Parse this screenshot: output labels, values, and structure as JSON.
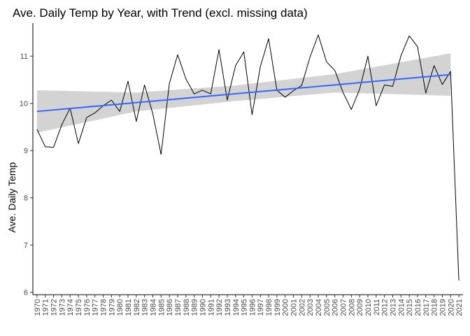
{
  "chart_data": {
    "type": "line",
    "title": "Ave. Daily Temp by Year, with Trend (excl. missing data)",
    "xlabel": "",
    "ylabel": "Ave. Daily Temp",
    "x": [
      1970,
      1971,
      1972,
      1973,
      1974,
      1975,
      1976,
      1977,
      1978,
      1979,
      1980,
      1981,
      1982,
      1983,
      1984,
      1985,
      1986,
      1987,
      1988,
      1989,
      1990,
      1991,
      1992,
      1993,
      1994,
      1995,
      1996,
      1997,
      1998,
      1999,
      2000,
      2001,
      2002,
      2003,
      2004,
      2005,
      2006,
      2007,
      2008,
      2009,
      2010,
      2011,
      2012,
      2013,
      2014,
      2015,
      2016,
      2017,
      2018,
      2019,
      2020,
      2021
    ],
    "x_tick_labels": [
      "1970",
      "1971",
      "1972",
      "1973",
      "1974",
      "1975",
      "1976",
      "1977",
      "1978",
      "1979",
      "1980",
      "1981",
      "1982",
      "1983",
      "1984",
      "1985",
      "1986",
      "1987",
      "1988",
      "1989",
      "1990",
      "1991",
      "1992",
      "1993",
      "1994",
      "1995",
      "1996",
      "1997",
      "1998",
      "1999",
      "2000",
      "2001",
      "2002",
      "2003",
      "2004",
      "2005",
      "2006",
      "2007",
      "2008",
      "2009",
      "2010",
      "2011",
      "2012",
      "2013",
      "2014",
      "2015",
      "2016",
      "2017",
      "2018",
      "2019",
      "2020",
      "2021"
    ],
    "y_ticks": [
      "6",
      "7",
      "8",
      "9",
      "10",
      "11"
    ],
    "ylim": [
      5.95,
      11.7
    ],
    "xlim": [
      1969.5,
      2021.5
    ],
    "grid": false,
    "series": [
      {
        "role": "observed",
        "color": "#000000",
        "values": [
          9.45,
          9.08,
          9.07,
          9.55,
          9.9,
          9.15,
          9.7,
          9.8,
          9.95,
          10.07,
          9.83,
          10.47,
          9.62,
          10.39,
          9.78,
          8.92,
          10.42,
          11.03,
          10.52,
          10.2,
          10.28,
          10.2,
          11.14,
          10.07,
          10.8,
          11.09,
          9.76,
          10.78,
          11.37,
          10.28,
          10.13,
          10.27,
          10.38,
          10.98,
          11.45,
          10.88,
          10.7,
          10.23,
          9.87,
          10.3,
          11.0,
          9.95,
          10.39,
          10.36,
          11.01,
          11.43,
          11.2,
          10.22,
          10.8,
          10.4,
          10.68,
          6.25
        ]
      },
      {
        "role": "trend",
        "color": "#3366ff",
        "start": [
          1970,
          9.83
        ],
        "end": [
          2020,
          10.61
        ]
      }
    ],
    "confidence_band": {
      "color": "#d3d3d3",
      "x": [
        1970,
        1982,
        1994,
        2006,
        2020
      ],
      "lower": [
        9.38,
        9.83,
        10.05,
        10.23,
        10.16
      ],
      "upper": [
        10.28,
        10.23,
        10.38,
        10.62,
        11.06
      ]
    }
  }
}
